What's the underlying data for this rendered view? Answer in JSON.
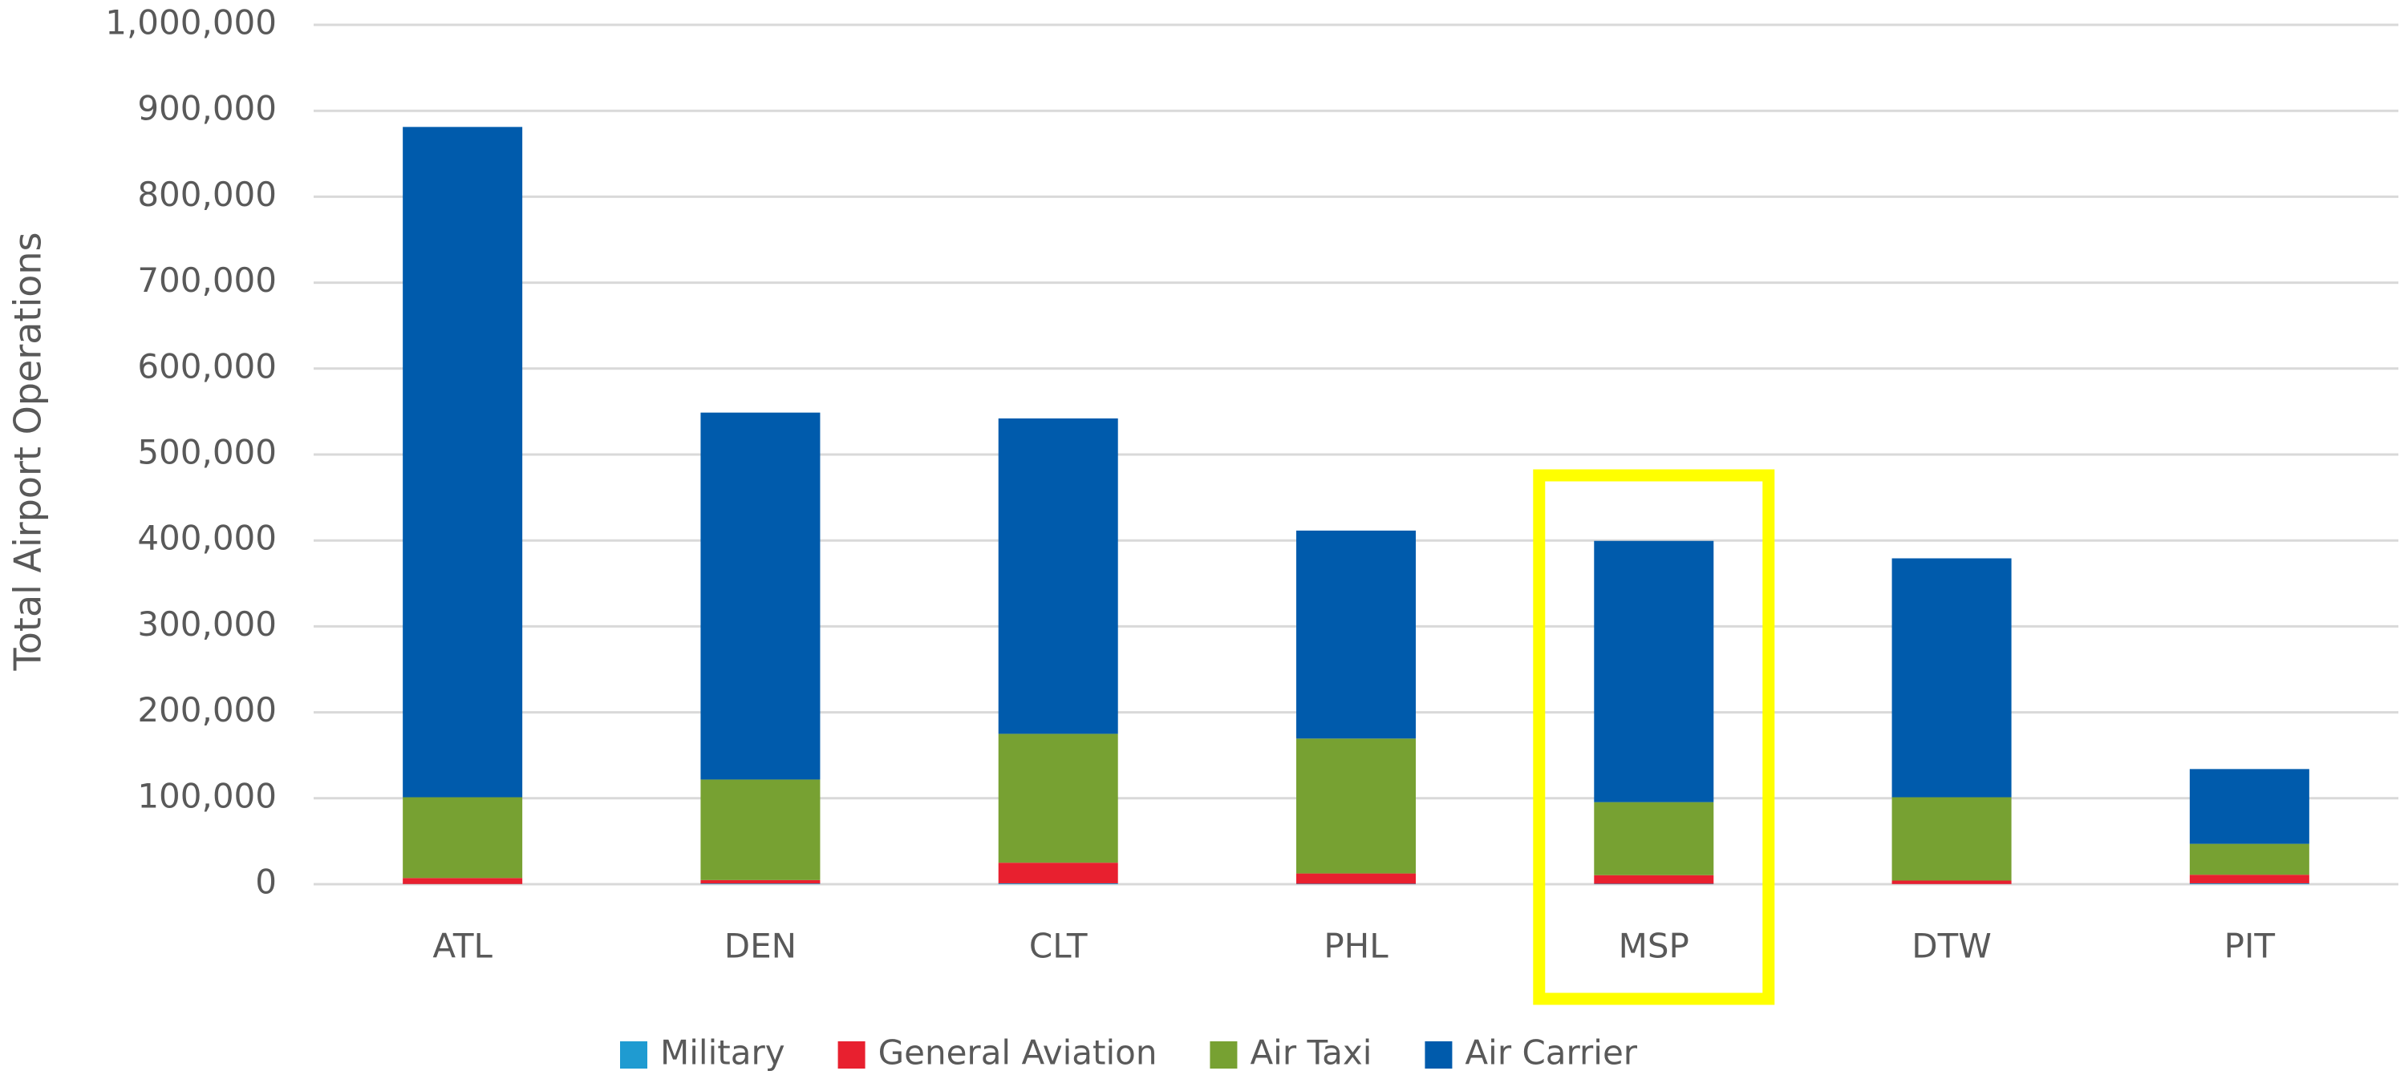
{
  "chart_data": {
    "type": "stacked_bar",
    "y_label": "Total Airport Operations",
    "categories": [
      "ATL",
      "DEN",
      "CLT",
      "PHL",
      "MSP",
      "DTW",
      "PIT"
    ],
    "series": [
      {
        "name": "Military",
        "color": "#1f9bd1",
        "values": [
          200,
          800,
          1000,
          500,
          500,
          200,
          1000
        ]
      },
      {
        "name": "General Aviation",
        "color": "#e8202f",
        "values": [
          7000,
          4000,
          24000,
          12000,
          10000,
          4000,
          10000
        ]
      },
      {
        "name": "Air Taxi",
        "color": "#77a132",
        "values": [
          94000,
          117000,
          150000,
          157000,
          85000,
          97000,
          36000
        ]
      },
      {
        "name": "Air Carrier",
        "color": "#005bac",
        "values": [
          780000,
          427000,
          367000,
          242000,
          304000,
          278000,
          87000
        ]
      }
    ],
    "ylim": [
      0,
      1000000
    ],
    "yticks": [
      0,
      {
        "value": 100000,
        "label": "100,000"
      },
      {
        "value": 200000,
        "label": "200,000"
      },
      {
        "value": 300000,
        "label": "300,000"
      },
      {
        "value": 400000,
        "label": "400,000"
      },
      {
        "value": 500000,
        "label": "500,000"
      },
      {
        "value": 600000,
        "label": "600,000"
      },
      {
        "value": 700000,
        "label": "700,000"
      },
      {
        "value": 800000,
        "label": "800,000"
      },
      {
        "value": 900000,
        "label": "900,000"
      },
      {
        "value": 1000000,
        "label": "1,000,000"
      }
    ],
    "grid": true,
    "legend": "bottom",
    "highlight": "MSP",
    "highlight_color": "#ffff00"
  }
}
